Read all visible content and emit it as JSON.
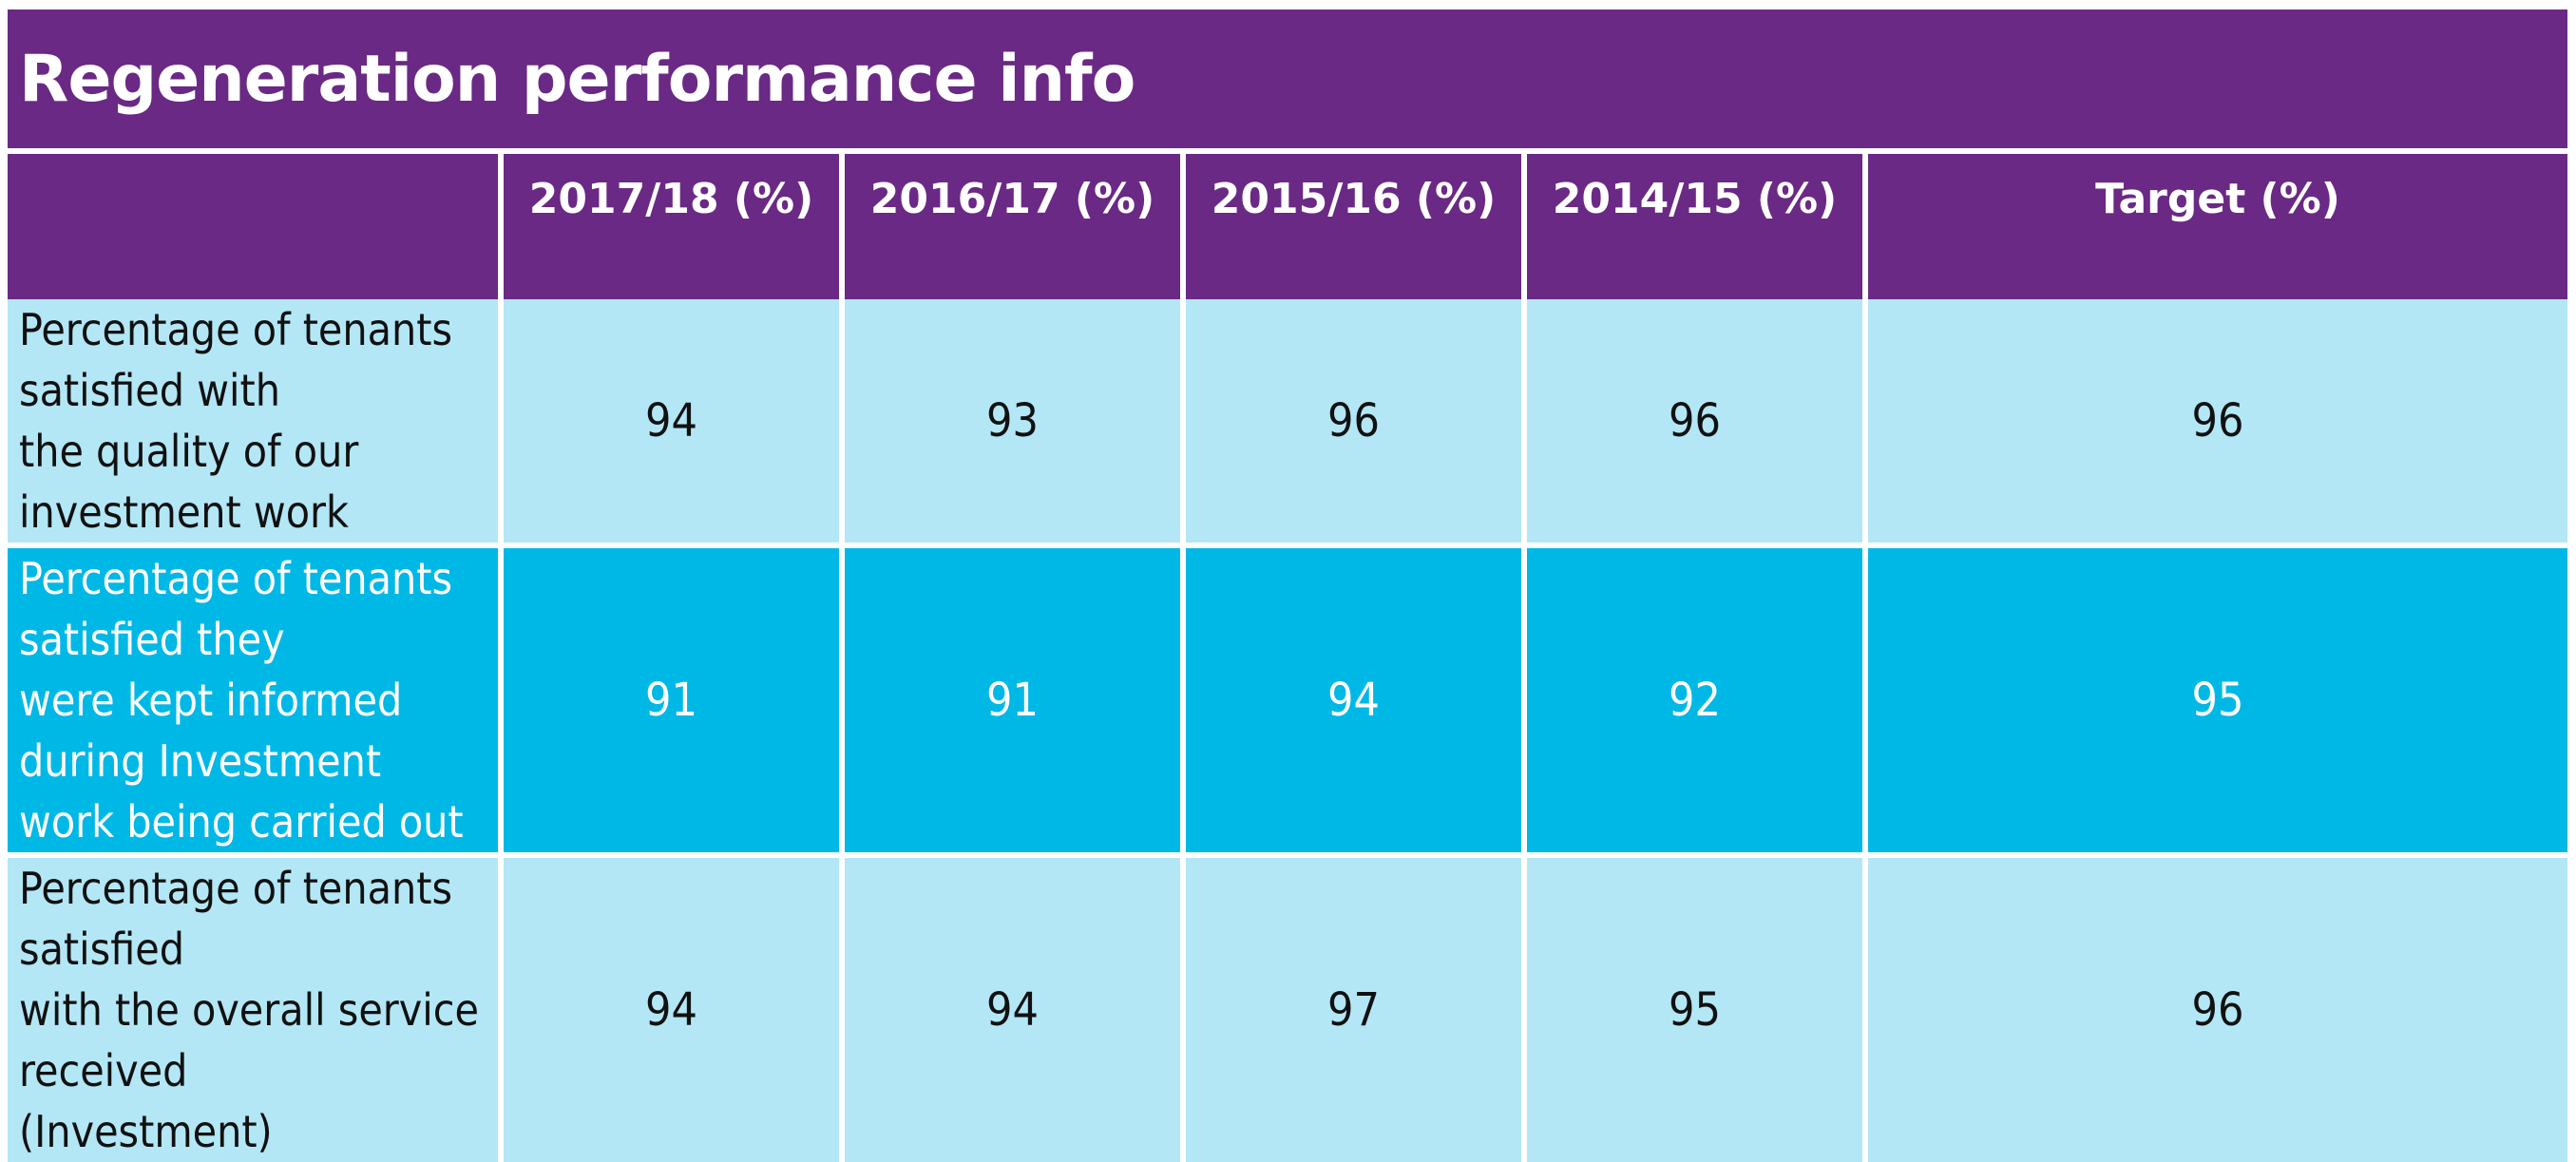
{
  "chart_data": {
    "type": "table",
    "title": "Regeneration performance info",
    "columns": [
      "",
      "2017/18 (%)",
      "2016/17 (%)",
      "2015/16 (%)",
      "2014/15 (%)",
      "Target (%)"
    ],
    "rows": [
      {
        "label_lines": [
          "Percentage of tenants satisfied with",
          "the quality of our investment work"
        ],
        "values": [
          "94",
          "93",
          "96",
          "96",
          "96"
        ]
      },
      {
        "label_lines": [
          "Percentage of tenants satisfied they",
          "were kept informed during Investment",
          "work being carried out"
        ],
        "values": [
          "91",
          "91",
          "94",
          "92",
          "95"
        ]
      },
      {
        "label_lines": [
          "Percentage of tenants satisfied",
          "with the overall service received",
          "(Investment)"
        ],
        "values": [
          "94",
          "94",
          "97",
          "95",
          "96"
        ]
      }
    ],
    "colors": {
      "header": "#6a2984",
      "row_light": "#b3e7f6",
      "row_dark": "#00b8e6",
      "text_dark": "#111111",
      "text_light": "#ffffff"
    }
  }
}
